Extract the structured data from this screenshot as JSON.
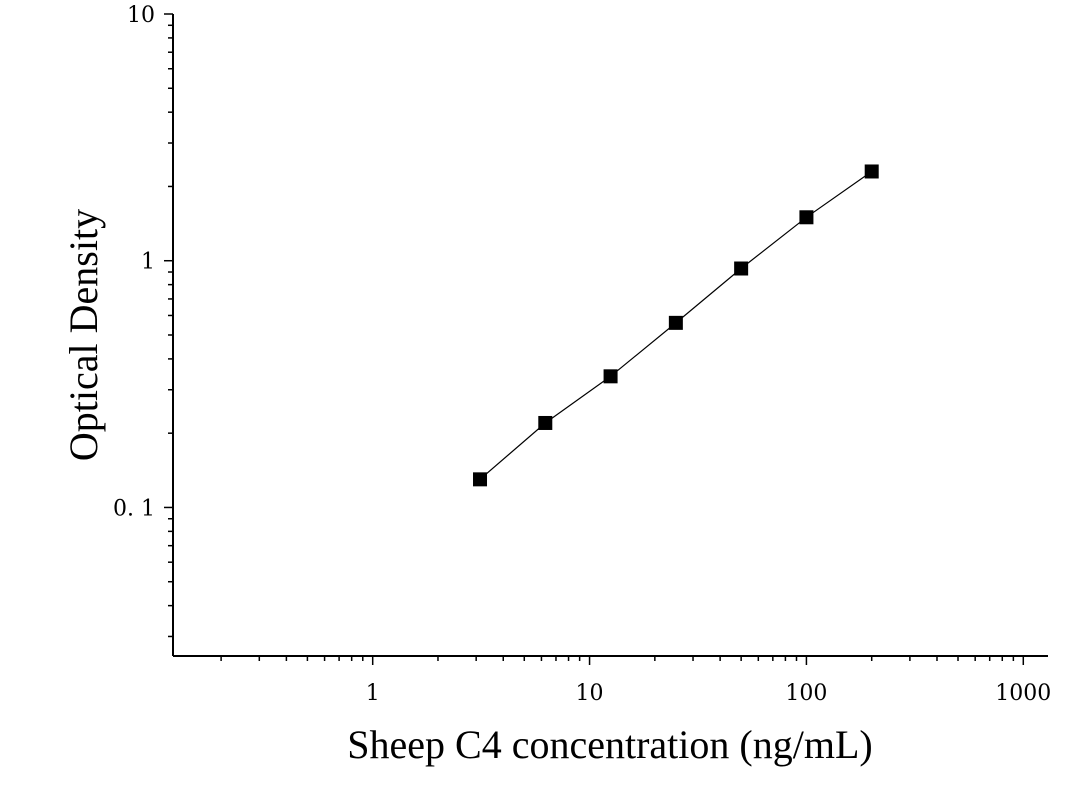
{
  "chart_data": {
    "type": "scatter",
    "xlabel": "Sheep C4 concentration (ng/mL)",
    "ylabel": "Optical Density",
    "x_scale": "log",
    "y_scale": "log",
    "xlim": [
      0.12,
      1300
    ],
    "ylim": [
      0.025,
      10
    ],
    "x_ticks": [
      1,
      10,
      100,
      1000
    ],
    "x_tick_labels": [
      "1",
      "10",
      "100",
      "1000"
    ],
    "y_ticks": [
      0.1,
      1,
      10
    ],
    "y_tick_labels": [
      "0. 1",
      "1",
      "10"
    ],
    "grid": false,
    "marker": "square",
    "fit_line": true,
    "colors": {
      "marker": "#000000",
      "line": "#000000",
      "axis": "#000000"
    },
    "series": [
      {
        "x": [
          3.125,
          6.25,
          12.5,
          25,
          50,
          100,
          200
        ],
        "y": [
          0.13,
          0.22,
          0.34,
          0.56,
          0.93,
          1.5,
          2.3
        ]
      }
    ]
  }
}
